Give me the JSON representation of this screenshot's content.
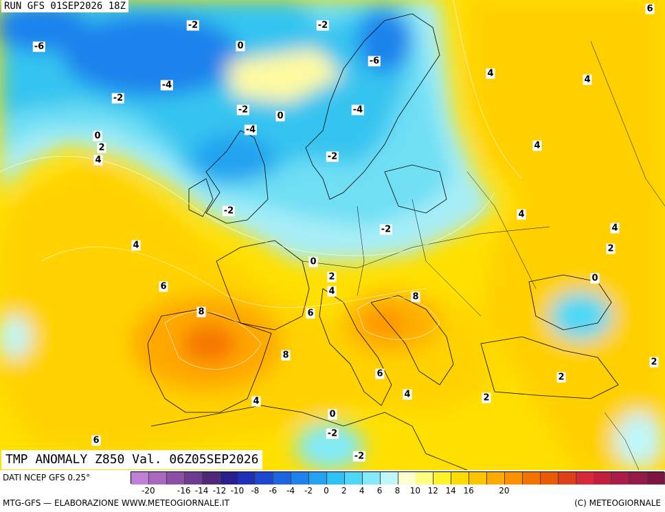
{
  "header": {
    "run_title": "RUN GFS 01SEP2026 18Z"
  },
  "product": {
    "title": "TMP ANOMALY Z850 Val. 06Z05SEP2026"
  },
  "footer": {
    "source": "DATI NCEP GFS 0.25°",
    "credit_left": "MTG-GFS — ELABORAZIONE WWW.METEOGIORNALE.IT",
    "credit_right": "(C) METEOGIORNALE"
  },
  "legend": {
    "colors": [
      "#c080d8",
      "#a868c0",
      "#8c50a8",
      "#6c3c90",
      "#502878",
      "#2a1f8c",
      "#1f30b8",
      "#1c48d0",
      "#1c64e0",
      "#1e82ec",
      "#22a2f0",
      "#2ec2f4",
      "#4cd8f6",
      "#82eaf8",
      "#bff6fa",
      "#ffffd0",
      "#ffff80",
      "#fff22a",
      "#ffdc00",
      "#ffc400",
      "#ffaa00",
      "#ff9000",
      "#f57400",
      "#ea5a00",
      "#e04018",
      "#d42838",
      "#c01e3c",
      "#ac1c48",
      "#961848",
      "#801440"
    ],
    "ticks": [
      "-20",
      "-16",
      "-14",
      "-12",
      "-10",
      "-8",
      "-6",
      "-4",
      "-2",
      "0",
      "2",
      "4",
      "6",
      "8",
      "10",
      "12",
      "14",
      "16",
      "20"
    ]
  },
  "map_labels": [
    {
      "text": "-2",
      "boxed": true
    },
    {
      "text": "-2",
      "boxed": true
    },
    {
      "text": "-6",
      "boxed": true
    },
    {
      "text": "0",
      "boxed": true
    },
    {
      "text": "-6",
      "boxed": true
    },
    {
      "text": "4",
      "boxed": true
    },
    {
      "text": "4",
      "boxed": true
    },
    {
      "text": "-4",
      "boxed": true
    },
    {
      "text": "-2",
      "boxed": true
    },
    {
      "text": "-2",
      "boxed": true
    },
    {
      "text": "0",
      "boxed": true
    },
    {
      "text": "-4",
      "boxed": true
    },
    {
      "text": "-4",
      "boxed": true
    },
    {
      "text": "0",
      "boxed": true
    },
    {
      "text": "2",
      "boxed": true
    },
    {
      "text": "4",
      "boxed": true
    },
    {
      "text": "-2",
      "boxed": true
    },
    {
      "text": "4",
      "boxed": true
    },
    {
      "text": "-2",
      "boxed": true
    },
    {
      "text": "4",
      "boxed": true
    },
    {
      "text": "-2",
      "boxed": true
    },
    {
      "text": "4",
      "boxed": true
    },
    {
      "text": "4",
      "boxed": true
    },
    {
      "text": "2",
      "boxed": true
    },
    {
      "text": "0",
      "boxed": true
    },
    {
      "text": "2",
      "boxed": true
    },
    {
      "text": "0",
      "boxed": true
    },
    {
      "text": "6",
      "boxed": true
    },
    {
      "text": "4",
      "boxed": true
    },
    {
      "text": "8",
      "boxed": true
    },
    {
      "text": "6",
      "boxed": true
    },
    {
      "text": "8",
      "boxed": true
    },
    {
      "text": "8",
      "boxed": true
    },
    {
      "text": "6",
      "boxed": true
    },
    {
      "text": "4",
      "boxed": true
    },
    {
      "text": "2",
      "boxed": true
    },
    {
      "text": "2",
      "boxed": true
    },
    {
      "text": "4",
      "boxed": true
    },
    {
      "text": "2",
      "boxed": true
    },
    {
      "text": "0",
      "boxed": true
    },
    {
      "text": "-2",
      "boxed": true
    },
    {
      "text": "6",
      "boxed": true
    },
    {
      "text": "6",
      "boxed": true
    },
    {
      "text": "2",
      "boxed": true
    },
    {
      "text": "-2",
      "boxed": true
    }
  ]
}
